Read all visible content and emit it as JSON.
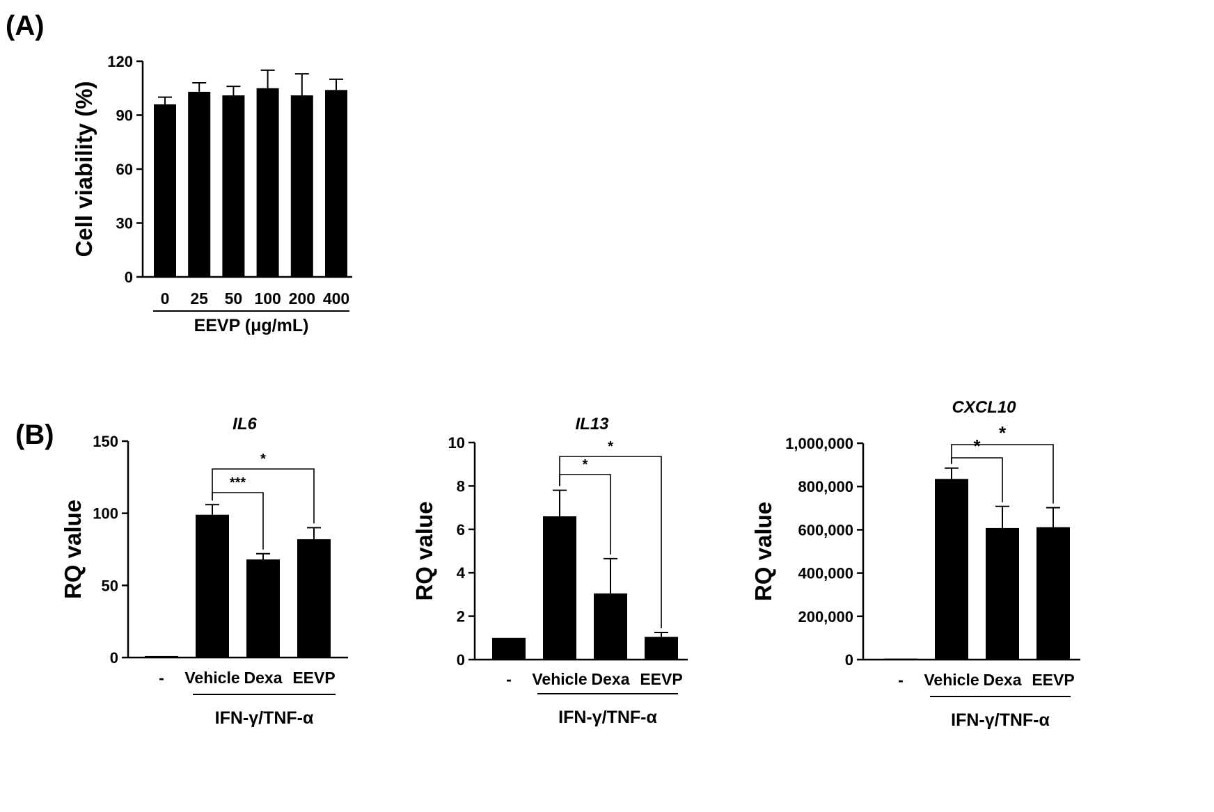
{
  "panels": {
    "a": "(A)",
    "b": "(B)"
  },
  "chart_data": [
    {
      "id": "viability",
      "type": "bar",
      "title": "",
      "ylabel": "Cell viability (%)",
      "xlabel": "EEVP (μg/mL)",
      "categories": [
        "0",
        "25",
        "50",
        "100",
        "200",
        "400"
      ],
      "values": [
        96,
        103,
        101,
        105,
        101,
        104
      ],
      "errors": [
        4,
        5,
        5,
        10,
        12,
        6
      ],
      "ylim": [
        0,
        120
      ],
      "yticks": [
        "0",
        "30",
        "60",
        "90",
        "120"
      ],
      "ytick_values": [
        0,
        30,
        60,
        90,
        120
      ],
      "annotations": []
    },
    {
      "id": "il6",
      "type": "bar",
      "title": "IL6",
      "ylabel": "RQ value",
      "xlabel": "IFN-γ/TNF-α",
      "categories": [
        "-",
        "Vehicle",
        "Dexa",
        "EEVP"
      ],
      "values": [
        1,
        99,
        68,
        82
      ],
      "errors": [
        0,
        7,
        4,
        8
      ],
      "ylim": [
        0,
        150
      ],
      "yticks": [
        "0",
        "50",
        "100",
        "150"
      ],
      "ytick_values": [
        0,
        50,
        100,
        150
      ],
      "annotations": [
        {
          "from": "Vehicle",
          "to": "Dexa",
          "label": "***"
        },
        {
          "from": "Vehicle",
          "to": "EEVP",
          "label": "*"
        }
      ]
    },
    {
      "id": "il13",
      "type": "bar",
      "title": "IL13",
      "ylabel": "RQ value",
      "xlabel": "IFN-γ/TNF-α",
      "categories": [
        "-",
        "Vehicle",
        "Dexa",
        "EEVP"
      ],
      "values": [
        1.0,
        6.6,
        3.05,
        1.05
      ],
      "errors": [
        0,
        1.2,
        1.6,
        0.2
      ],
      "ylim": [
        0,
        10
      ],
      "yticks": [
        "0",
        "2",
        "4",
        "6",
        "8",
        "10"
      ],
      "ytick_values": [
        0,
        2,
        4,
        6,
        8,
        10
      ],
      "annotations": [
        {
          "from": "Vehicle",
          "to": "Dexa",
          "label": "*"
        },
        {
          "from": "Vehicle",
          "to": "EEVP",
          "label": "*"
        }
      ]
    },
    {
      "id": "cxcl10",
      "type": "bar",
      "title": "CXCL10",
      "ylabel": "RQ value",
      "xlabel": "IFN-γ/TNF-α",
      "categories": [
        "-",
        "Vehicle",
        "Dexa",
        "EEVP"
      ],
      "values": [
        1,
        835000,
        608000,
        612000
      ],
      "errors": [
        0,
        50000,
        100000,
        90000
      ],
      "ylim": [
        0,
        1000000
      ],
      "yticks": [
        "0",
        "200,000",
        "400,000",
        "600,000",
        "800,000",
        "1,000,000"
      ],
      "ytick_values": [
        0,
        200000,
        400000,
        600000,
        800000,
        1000000
      ],
      "annotations": [
        {
          "from": "Vehicle",
          "to": "Dexa",
          "label": "*"
        },
        {
          "from": "Vehicle",
          "to": "EEVP",
          "label": "*"
        }
      ]
    }
  ]
}
